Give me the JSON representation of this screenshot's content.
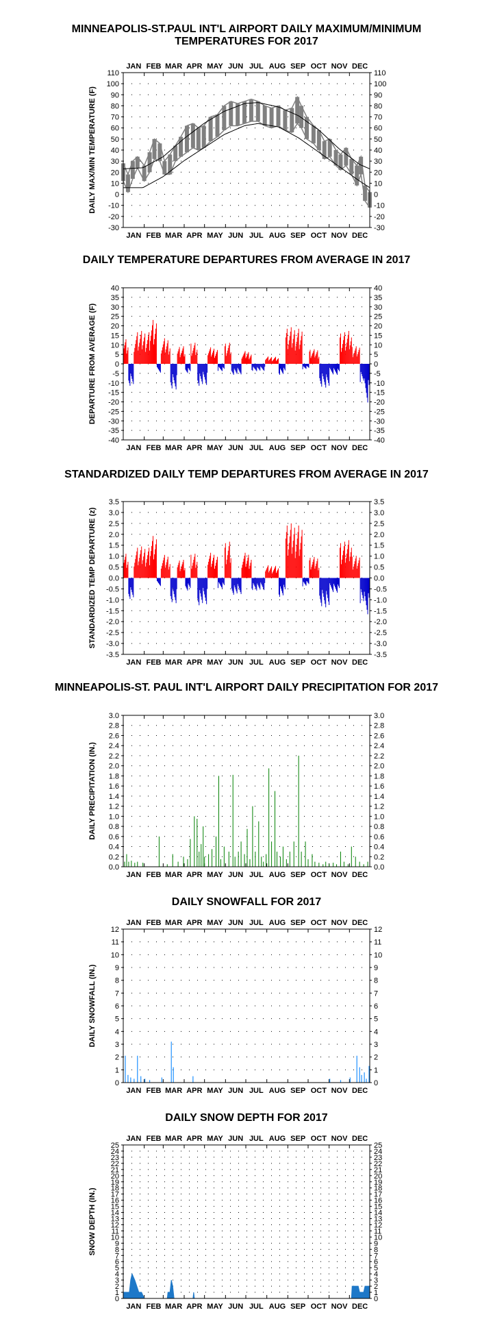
{
  "charts": [
    {
      "id": "temps",
      "title_lines": [
        "MINNEAPOLIS-ST.PAUL INT'L AIRPORT DAILY MAXIMUM/MINIMUM",
        "TEMPERATURES FOR 2017"
      ],
      "ylabel": "DAILY MAX/MIN TEMPERATURE (F)",
      "ylim": [
        -30,
        110
      ],
      "tick_step": 10,
      "tick_decimals": 0,
      "month_labels_top": true
    },
    {
      "id": "departures",
      "title_lines": [
        "DAILY TEMPERATURE DEPARTURES FROM AVERAGE IN 2017"
      ],
      "ylabel": "DEPARTURE FROM AVERAGE (F)",
      "ylim": [
        -40,
        40
      ],
      "tick_step": 5,
      "tick_decimals": 0,
      "month_labels_top": false
    },
    {
      "id": "zscores",
      "title_lines": [
        "STANDARDIZED DAILY TEMP DEPARTURES FROM AVERAGE IN 2017"
      ],
      "ylabel": "STANDARDIZED TEMP DEPARTURE (z)",
      "ylim": [
        -3.5,
        3.5
      ],
      "tick_step": 0.5,
      "tick_decimals": 1,
      "month_labels_top": false
    },
    {
      "id": "precip",
      "title_lines": [
        "MINNEAPOLIS-ST. PAUL INT'L AIRPORT DAILY PRECIPITATION FOR 2017"
      ],
      "ylabel": "DAILY PRECIPITATION (IN.)",
      "ylim": [
        0,
        3
      ],
      "tick_step": 0.2,
      "tick_decimals": 1,
      "month_labels_top": false
    },
    {
      "id": "snowfall",
      "title_lines": [
        "DAILY SNOWFALL FOR 2017"
      ],
      "ylabel": "DAILY SNOWFALL (IN.)",
      "ylim": [
        0,
        12
      ],
      "tick_step": 1,
      "tick_decimals": 0,
      "month_labels_top": true
    },
    {
      "id": "snowdepth",
      "title_lines": [
        "DAILY SNOW DEPTH FOR 2017"
      ],
      "ylabel": "SNOW DEPTH (IN.)",
      "ylim": [
        0,
        25
      ],
      "tick_step": 1,
      "tick_decimals": 0,
      "month_labels_top": true
    }
  ],
  "months": [
    "JAN",
    "FEB",
    "MAR",
    "APR",
    "MAY",
    "JUN",
    "JUL",
    "AUG",
    "SEP",
    "OCT",
    "NOV",
    "DEC"
  ],
  "colors": {
    "observed_temp": "#808080",
    "normal_temp": "#000000",
    "positive": "#ff0000",
    "negative": "#0000cc",
    "precip": "#008000",
    "snow": "#1e90ff",
    "snow_depth": "#1e78c8"
  },
  "chart_data": [
    {
      "type": "area",
      "x_axis": "day of year 2017 (1-365)",
      "series": [
        {
          "name": "",
          "kind": "band-max-min",
          "points": [
            [
              1,
              28,
              12
            ],
            [
              8,
              18,
              2
            ],
            [
              15,
              30,
              14
            ],
            [
              22,
              34,
              24
            ],
            [
              32,
              26,
              12
            ],
            [
              40,
              38,
              20
            ],
            [
              47,
              50,
              32
            ],
            [
              55,
              46,
              30
            ],
            [
              62,
              30,
              18
            ],
            [
              70,
              36,
              18
            ],
            [
              78,
              44,
              30
            ],
            [
              86,
              52,
              34
            ],
            [
              95,
              62,
              38
            ],
            [
              104,
              64,
              42
            ],
            [
              112,
              60,
              40
            ],
            [
              120,
              62,
              42
            ],
            [
              130,
              70,
              48
            ],
            [
              140,
              72,
              52
            ],
            [
              150,
              80,
              58
            ],
            [
              160,
              84,
              62
            ],
            [
              170,
              82,
              62
            ],
            [
              180,
              84,
              64
            ],
            [
              190,
              86,
              66
            ],
            [
              200,
              84,
              66
            ],
            [
              210,
              80,
              62
            ],
            [
              220,
              78,
              60
            ],
            [
              230,
              80,
              62
            ],
            [
              240,
              76,
              58
            ],
            [
              250,
              78,
              56
            ],
            [
              258,
              88,
              64
            ],
            [
              264,
              80,
              60
            ],
            [
              272,
              70,
              50
            ],
            [
              282,
              62,
              46
            ],
            [
              290,
              58,
              40
            ],
            [
              298,
              48,
              32
            ],
            [
              306,
              50,
              34
            ],
            [
              315,
              40,
              26
            ],
            [
              322,
              36,
              22
            ],
            [
              330,
              42,
              26
            ],
            [
              338,
              32,
              18
            ],
            [
              346,
              26,
              8
            ],
            [
              352,
              34,
              18
            ],
            [
              358,
              8,
              -6
            ],
            [
              365,
              2,
              -12
            ]
          ]
        },
        {
          "name": "",
          "kind": "line",
          "points": [
            [
              1,
              23
            ],
            [
              30,
              24
            ],
            [
              60,
              34
            ],
            [
              90,
              50
            ],
            [
              120,
              64
            ],
            [
              150,
              75
            ],
            [
              180,
              82
            ],
            [
              200,
              83
            ],
            [
              230,
              79
            ],
            [
              260,
              71
            ],
            [
              290,
              58
            ],
            [
              320,
              41
            ],
            [
              350,
              27
            ],
            [
              365,
              23
            ]
          ]
        },
        {
          "name": "",
          "kind": "line",
          "points": [
            [
              1,
              6
            ],
            [
              30,
              6
            ],
            [
              60,
              16
            ],
            [
              90,
              30
            ],
            [
              120,
              42
            ],
            [
              150,
              54
            ],
            [
              180,
              62
            ],
            [
              200,
              64
            ],
            [
              230,
              61
            ],
            [
              260,
              51
            ],
            [
              290,
              38
            ],
            [
              320,
              25
            ],
            [
              350,
              12
            ],
            [
              365,
              6
            ]
          ]
        }
      ]
    },
    {
      "type": "bar",
      "x_axis": "day of year 2017",
      "segments": [
        [
          1,
          8,
          14
        ],
        [
          9,
          16,
          -12
        ],
        [
          17,
          40,
          18
        ],
        [
          41,
          50,
          24
        ],
        [
          51,
          56,
          -5
        ],
        [
          57,
          70,
          14
        ],
        [
          71,
          80,
          -14
        ],
        [
          81,
          92,
          10
        ],
        [
          93,
          100,
          -5
        ],
        [
          101,
          110,
          12
        ],
        [
          111,
          125,
          -12
        ],
        [
          126,
          140,
          9
        ],
        [
          141,
          150,
          -4
        ],
        [
          151,
          160,
          12
        ],
        [
          161,
          175,
          -6
        ],
        [
          176,
          190,
          7
        ],
        [
          191,
          210,
          -4
        ],
        [
          211,
          230,
          4
        ],
        [
          231,
          240,
          -6
        ],
        [
          241,
          265,
          20
        ],
        [
          266,
          275,
          -3
        ],
        [
          276,
          290,
          8
        ],
        [
          291,
          305,
          -13
        ],
        [
          306,
          320,
          -6
        ],
        [
          321,
          338,
          18
        ],
        [
          339,
          350,
          10
        ],
        [
          351,
          356,
          -10
        ],
        [
          357,
          365,
          -22
        ]
      ]
    },
    {
      "type": "bar",
      "x_axis": "day of year 2017",
      "segments": [
        [
          1,
          8,
          1.2
        ],
        [
          9,
          16,
          -1.0
        ],
        [
          17,
          40,
          1.5
        ],
        [
          41,
          50,
          2.0
        ],
        [
          51,
          56,
          -0.4
        ],
        [
          57,
          70,
          1.1
        ],
        [
          71,
          80,
          -1.2
        ],
        [
          81,
          92,
          0.9
        ],
        [
          93,
          100,
          -0.6
        ],
        [
          101,
          110,
          1.2
        ],
        [
          111,
          125,
          -1.3
        ],
        [
          126,
          140,
          1.2
        ],
        [
          141,
          150,
          -0.5
        ],
        [
          151,
          160,
          1.8
        ],
        [
          161,
          175,
          -0.8
        ],
        [
          176,
          190,
          1.2
        ],
        [
          191,
          210,
          -0.6
        ],
        [
          211,
          230,
          0.6
        ],
        [
          231,
          240,
          -0.9
        ],
        [
          241,
          265,
          2.6
        ],
        [
          266,
          275,
          -0.4
        ],
        [
          276,
          290,
          1.0
        ],
        [
          291,
          305,
          -1.4
        ],
        [
          306,
          320,
          -0.7
        ],
        [
          321,
          338,
          1.8
        ],
        [
          339,
          350,
          1.1
        ],
        [
          351,
          356,
          -1.2
        ],
        [
          357,
          365,
          -1.8
        ]
      ]
    },
    {
      "type": "bar",
      "x_axis": "day of year 2017",
      "points": [
        [
          3,
          0.1
        ],
        [
          6,
          0.25
        ],
        [
          9,
          0.1
        ],
        [
          13,
          0.12
        ],
        [
          18,
          0.08
        ],
        [
          22,
          0.1
        ],
        [
          30,
          0.08
        ],
        [
          54,
          0.6
        ],
        [
          66,
          0.05
        ],
        [
          74,
          0.25
        ],
        [
          82,
          0.1
        ],
        [
          90,
          0.2
        ],
        [
          96,
          0.15
        ],
        [
          100,
          0.55
        ],
        [
          106,
          1.0
        ],
        [
          110,
          0.95
        ],
        [
          113,
          0.3
        ],
        [
          116,
          0.45
        ],
        [
          119,
          0.8
        ],
        [
          121,
          0.2
        ],
        [
          127,
          0.25
        ],
        [
          132,
          0.35
        ],
        [
          138,
          0.6
        ],
        [
          142,
          1.8
        ],
        [
          145,
          0.15
        ],
        [
          150,
          0.4
        ],
        [
          157,
          0.3
        ],
        [
          163,
          1.82
        ],
        [
          166,
          0.2
        ],
        [
          171,
          0.3
        ],
        [
          175,
          0.5
        ],
        [
          180,
          0.25
        ],
        [
          184,
          0.75
        ],
        [
          188,
          0.15
        ],
        [
          192,
          1.2
        ],
        [
          196,
          0.3
        ],
        [
          201,
          0.9
        ],
        [
          205,
          0.2
        ],
        [
          208,
          0.1
        ],
        [
          212,
          0.25
        ],
        [
          216,
          1.95
        ],
        [
          220,
          0.5
        ],
        [
          225,
          1.5
        ],
        [
          228,
          0.3
        ],
        [
          233,
          0.2
        ],
        [
          237,
          0.4
        ],
        [
          242,
          0.15
        ],
        [
          247,
          0.3
        ],
        [
          253,
          0.5
        ],
        [
          260,
          2.2
        ],
        [
          264,
          0.3
        ],
        [
          270,
          0.5
        ],
        [
          274,
          0.15
        ],
        [
          280,
          0.25
        ],
        [
          284,
          0.1
        ],
        [
          290,
          0.08
        ],
        [
          296,
          0.05
        ],
        [
          300,
          0.1
        ],
        [
          305,
          0.05
        ],
        [
          311,
          0.08
        ],
        [
          316,
          0.05
        ],
        [
          322,
          0.3
        ],
        [
          327,
          0.1
        ],
        [
          333,
          0.05
        ],
        [
          338,
          0.4
        ],
        [
          344,
          0.2
        ],
        [
          350,
          0.1
        ],
        [
          356,
          0.05
        ],
        [
          362,
          0.1
        ]
      ]
    },
    {
      "type": "bar",
      "x_axis": "day of year 2017",
      "points": [
        [
          4,
          2.1
        ],
        [
          8,
          0.6
        ],
        [
          12,
          0.4
        ],
        [
          17,
          0.3
        ],
        [
          22,
          2.1
        ],
        [
          27,
          0.5
        ],
        [
          33,
          0.3
        ],
        [
          40,
          0.2
        ],
        [
          58,
          0.4
        ],
        [
          72,
          3.2
        ],
        [
          75,
          1.2
        ],
        [
          104,
          0.5
        ],
        [
          306,
          0.3
        ],
        [
          322,
          0.2
        ],
        [
          336,
          0.4
        ],
        [
          346,
          2.1
        ],
        [
          350,
          1.2
        ],
        [
          353,
          0.6
        ],
        [
          357,
          0.8
        ],
        [
          360,
          0.3
        ],
        [
          364,
          1.3
        ]
      ]
    },
    {
      "type": "area",
      "x_axis": "day of year 2017",
      "points": [
        [
          1,
          1
        ],
        [
          10,
          1
        ],
        [
          12,
          3
        ],
        [
          14,
          4
        ],
        [
          18,
          3
        ],
        [
          21,
          2
        ],
        [
          24,
          1
        ],
        [
          28,
          1
        ],
        [
          32,
          0
        ],
        [
          66,
          0
        ],
        [
          67,
          1
        ],
        [
          70,
          1
        ],
        [
          72,
          3
        ],
        [
          74,
          2
        ],
        [
          76,
          0
        ],
        [
          104,
          0
        ],
        [
          105,
          1
        ],
        [
          106,
          0
        ],
        [
          338,
          0
        ],
        [
          339,
          2
        ],
        [
          348,
          2
        ],
        [
          350,
          1
        ],
        [
          356,
          1
        ],
        [
          358,
          2
        ],
        [
          365,
          2
        ]
      ]
    }
  ]
}
